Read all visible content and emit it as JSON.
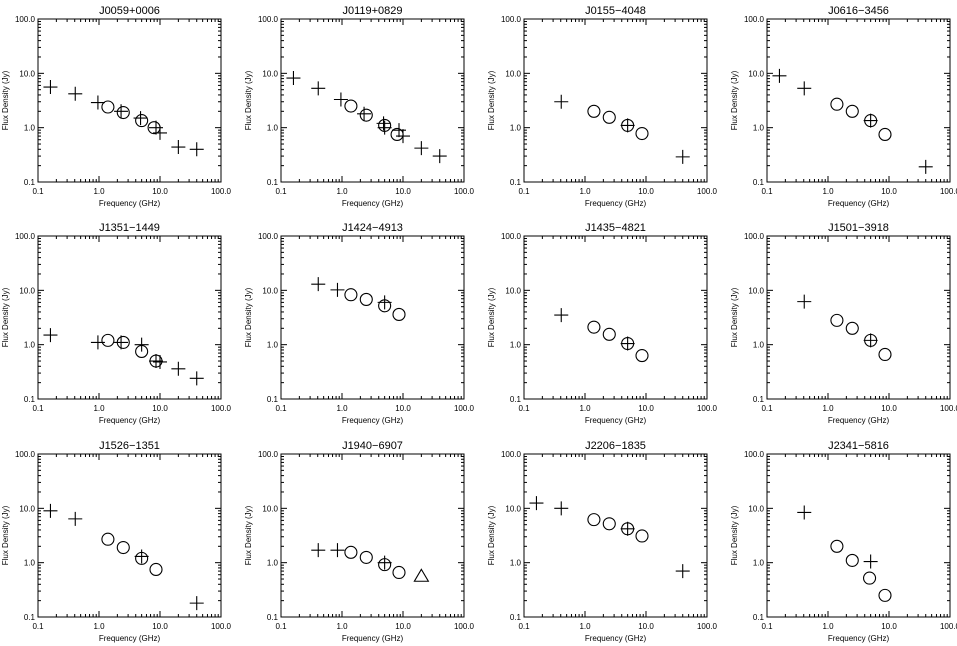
{
  "style": {
    "ink": "#000000",
    "background": "#ffffff"
  },
  "axes_template": {
    "xlabel": "Frequency (GHz)",
    "ylabel": "Flux Density (Jy)",
    "xscale": "log",
    "yscale": "log",
    "xlim": [
      0.1,
      100.0
    ],
    "ylim": [
      0.1,
      100.0
    ],
    "xticks": [
      0.1,
      1.0,
      10.0,
      100.0
    ],
    "xtick_labels": [
      "0.1",
      "1.0",
      "10.0",
      "100.0"
    ],
    "yticks": [
      0.1,
      1.0,
      10.0,
      100.0
    ],
    "ytick_labels": [
      "0.1",
      "1.0",
      "10.0",
      "100.0"
    ]
  },
  "chart_data": [
    {
      "type": "scatter",
      "title": "J0059+0006",
      "series": [
        {
          "marker": "plus",
          "x": [
            0.16,
            0.408,
            0.96,
            2.3,
            4.8,
            8.6,
            10.0,
            20.0,
            40.0
          ],
          "y": [
            5.6,
            4.2,
            2.9,
            2.0,
            1.5,
            1.0,
            0.8,
            0.44,
            0.4
          ]
        },
        {
          "marker": "circle",
          "x": [
            1.4,
            2.5,
            5.0,
            8.0
          ],
          "y": [
            2.4,
            1.9,
            1.35,
            1.0
          ]
        }
      ]
    },
    {
      "type": "scatter",
      "title": "J0119+0829",
      "series": [
        {
          "marker": "plus",
          "x": [
            0.16,
            0.408,
            0.96,
            2.3,
            4.8,
            5.0,
            8.6,
            10.0,
            20.0,
            40.0
          ],
          "y": [
            8.2,
            5.3,
            3.3,
            1.8,
            1.2,
            1.0,
            0.9,
            0.7,
            0.42,
            0.3
          ]
        },
        {
          "marker": "circle",
          "x": [
            1.4,
            2.5,
            5.0,
            8.0
          ],
          "y": [
            2.5,
            1.7,
            1.1,
            0.75
          ]
        }
      ]
    },
    {
      "type": "scatter",
      "title": "J0155−4048",
      "series": [
        {
          "marker": "plus",
          "x": [
            0.408,
            5.0,
            40.0
          ],
          "y": [
            3.0,
            1.1,
            0.29
          ]
        },
        {
          "marker": "circle",
          "x": [
            1.4,
            2.5,
            5.0,
            8.6
          ],
          "y": [
            2.0,
            1.55,
            1.1,
            0.78
          ]
        }
      ]
    },
    {
      "type": "scatter",
      "title": "J0616−3456",
      "series": [
        {
          "marker": "plus",
          "x": [
            0.16,
            0.408,
            5.0,
            40.0
          ],
          "y": [
            9.0,
            5.3,
            1.35,
            0.19
          ]
        },
        {
          "marker": "circle",
          "x": [
            1.4,
            2.5,
            5.0,
            8.6
          ],
          "y": [
            2.7,
            2.0,
            1.35,
            0.75
          ]
        }
      ]
    },
    {
      "type": "scatter",
      "title": "J1351−1449",
      "series": [
        {
          "marker": "plus",
          "x": [
            0.16,
            0.96,
            2.3,
            5.0,
            8.6,
            10.0,
            20.0,
            40.0
          ],
          "y": [
            1.5,
            1.1,
            1.1,
            1.0,
            0.5,
            0.48,
            0.36,
            0.24
          ]
        },
        {
          "marker": "circle",
          "x": [
            1.4,
            2.5,
            5.0,
            8.6
          ],
          "y": [
            1.2,
            1.1,
            0.75,
            0.5
          ]
        }
      ]
    },
    {
      "type": "scatter",
      "title": "J1424−4913",
      "series": [
        {
          "marker": "plus",
          "x": [
            0.408,
            0.843,
            5.0
          ],
          "y": [
            13.0,
            10.2,
            6.0
          ]
        },
        {
          "marker": "circle",
          "x": [
            1.4,
            2.5,
            5.0,
            8.6
          ],
          "y": [
            8.3,
            6.8,
            5.2,
            3.6
          ]
        }
      ]
    },
    {
      "type": "scatter",
      "title": "J1435−4821",
      "series": [
        {
          "marker": "plus",
          "x": [
            0.408,
            5.0
          ],
          "y": [
            3.5,
            1.05
          ]
        },
        {
          "marker": "circle",
          "x": [
            1.4,
            2.5,
            5.0,
            8.6
          ],
          "y": [
            2.1,
            1.55,
            1.05,
            0.63
          ]
        }
      ]
    },
    {
      "type": "scatter",
      "title": "J1501−3918",
      "series": [
        {
          "marker": "plus",
          "x": [
            0.408,
            5.0
          ],
          "y": [
            6.2,
            1.2
          ]
        },
        {
          "marker": "circle",
          "x": [
            1.4,
            2.5,
            5.0,
            8.6
          ],
          "y": [
            2.8,
            2.0,
            1.2,
            0.66
          ]
        }
      ]
    },
    {
      "type": "scatter",
      "title": "J1526−1351",
      "series": [
        {
          "marker": "plus",
          "x": [
            0.16,
            0.408,
            5.0,
            40.0
          ],
          "y": [
            9.0,
            6.4,
            1.3,
            0.18
          ]
        },
        {
          "marker": "circle",
          "x": [
            1.4,
            2.5,
            5.0,
            8.6
          ],
          "y": [
            2.7,
            1.9,
            1.2,
            0.75
          ]
        }
      ]
    },
    {
      "type": "scatter",
      "title": "J1940−6907",
      "series": [
        {
          "marker": "plus",
          "x": [
            0.408,
            0.843,
            5.0
          ],
          "y": [
            1.7,
            1.7,
            1.0
          ]
        },
        {
          "marker": "circle",
          "x": [
            1.4,
            2.5,
            5.0,
            8.6
          ],
          "y": [
            1.55,
            1.25,
            0.92,
            0.66
          ]
        },
        {
          "marker": "triangle",
          "x": [
            20.0
          ],
          "y": [
            0.56
          ]
        }
      ]
    },
    {
      "type": "scatter",
      "title": "J2206−1835",
      "series": [
        {
          "marker": "plus",
          "x": [
            0.16,
            0.408,
            5.0,
            40.0
          ],
          "y": [
            12.5,
            10.0,
            4.2,
            0.7
          ]
        },
        {
          "marker": "circle",
          "x": [
            1.4,
            2.5,
            5.0,
            8.6
          ],
          "y": [
            6.2,
            5.2,
            4.2,
            3.1
          ]
        }
      ]
    },
    {
      "type": "scatter",
      "title": "J2341−5816",
      "series": [
        {
          "marker": "plus",
          "x": [
            0.408,
            5.0
          ],
          "y": [
            8.4,
            1.05
          ]
        },
        {
          "marker": "circle",
          "x": [
            1.4,
            2.5,
            4.8,
            8.6
          ],
          "y": [
            2.0,
            1.1,
            0.52,
            0.25
          ]
        }
      ]
    }
  ]
}
